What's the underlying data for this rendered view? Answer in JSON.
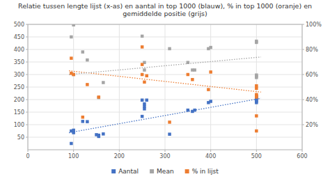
{
  "chart_data": {
    "type": "scatter",
    "title": "Relatie tussen lengte lijst (x-as) en aantal in top 1000 (blauw), % in top 1000 (oranje) en gemiddelde positie (grijs)",
    "xlim": [
      0,
      600
    ],
    "xticks": [
      0,
      100,
      200,
      300,
      400,
      500,
      600
    ],
    "ylim": [
      0,
      500
    ],
    "yticks": [
      50,
      100,
      150,
      200,
      250,
      300,
      350,
      400,
      450,
      500
    ],
    "y2lim": [
      0,
      100
    ],
    "y2ticks": [
      {
        "value": 20,
        "label": "20%"
      },
      {
        "value": 40,
        "label": "40%"
      },
      {
        "value": 60,
        "label": "60%"
      },
      {
        "value": 80,
        "label": "80%"
      },
      {
        "value": 100,
        "label": "100%"
      }
    ],
    "grid": true,
    "legend": "bottom",
    "series": [
      {
        "name": "Aantal",
        "color": "#4472c4",
        "marker": "square",
        "x": [
          95,
          95,
          100,
          100,
          120,
          130,
          150,
          155,
          155,
          165,
          250,
          250,
          255,
          255,
          255,
          260,
          310,
          350,
          360,
          365,
          395,
          400,
          500,
          500,
          500,
          500,
          500,
          500
        ],
        "values": [
          25,
          75,
          78,
          68,
          113,
          112,
          60,
          58,
          53,
          63,
          133,
          198,
          163,
          173,
          183,
          198,
          62,
          158,
          153,
          158,
          188,
          193,
          198,
          208,
          193,
          188,
          213,
          203
        ]
      },
      {
        "name": "Mean",
        "color": "#a5a5a5",
        "marker": "square",
        "x": [
          95,
          100,
          100,
          120,
          130,
          155,
          165,
          250,
          255,
          255,
          310,
          350,
          360,
          365,
          395,
          400,
          500,
          500,
          500,
          500,
          500
        ],
        "values": [
          450,
          498,
          300,
          390,
          358,
          208,
          268,
          453,
          348,
          318,
          403,
          348,
          318,
          318,
          403,
          408,
          428,
          433,
          298,
          293,
          288
        ]
      },
      {
        "name": "% in lijst",
        "color": "#ed7d31",
        "marker": "square",
        "axis": "y2",
        "x": [
          95,
          95,
          100,
          120,
          130,
          155,
          250,
          250,
          250,
          255,
          260,
          310,
          350,
          360,
          395,
          400,
          500,
          500,
          500,
          500,
          500,
          500,
          500
        ],
        "values": [
          73,
          61,
          60,
          26,
          52,
          42,
          60,
          68,
          82,
          54,
          59,
          22,
          60,
          56,
          48,
          62,
          27,
          42,
          44,
          49,
          43,
          15,
          51
        ]
      },
      {
        "type": "line",
        "line_style": "dotted",
        "color": "#4472c4",
        "x": [
          90,
          510
        ],
        "values": [
          68,
          205
        ]
      },
      {
        "type": "line",
        "line_style": "dotted",
        "color": "#ed7d31",
        "axis": "y2",
        "x": [
          90,
          510
        ],
        "values": [
          63,
          46
        ]
      },
      {
        "type": "line",
        "line_style": "dotted",
        "color": "#a5a5a5",
        "x": [
          90,
          510
        ],
        "values": [
          300,
          370
        ]
      }
    ]
  }
}
